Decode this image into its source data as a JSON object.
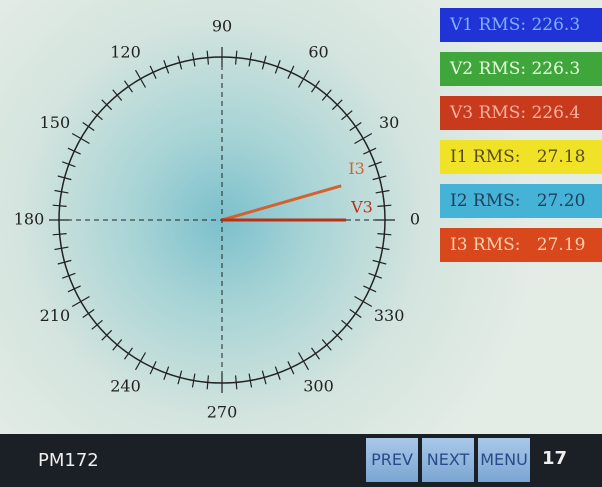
{
  "dial": {
    "angle_labels": [
      0,
      30,
      60,
      90,
      120,
      150,
      180,
      210,
      240,
      270,
      300,
      330
    ],
    "phasors": [
      {
        "label": "I3",
        "angle": 16,
        "color": "#d4622e"
      },
      {
        "label": "V3",
        "angle": 0,
        "color": "#b8321a"
      }
    ]
  },
  "readings": [
    {
      "label": "V1 RMS: 226.3",
      "background": "#1f33d6",
      "text_color": "#7fb0ff"
    },
    {
      "label": "V2 RMS: 226.3",
      "background": "#3fa63c",
      "text_color": "#e8ffe0"
    },
    {
      "label": "V3 RMS: 226.4",
      "background": "#c73b1c",
      "text_color": "#ffb0a0"
    },
    {
      "label": "I1 RMS:   27.18",
      "background": "#f0e226",
      "text_color": "#5a4a20"
    },
    {
      "label": "I2 RMS:   27.20",
      "background": "#45b2d8",
      "text_color": "#20405a"
    },
    {
      "label": "I3 RMS:   27.19",
      "background": "#d9481c",
      "text_color": "#ffd0b0"
    }
  ],
  "footer": {
    "device": "PM172",
    "buttons": [
      "PREV",
      "NEXT",
      "MENU"
    ],
    "clock": "17"
  }
}
